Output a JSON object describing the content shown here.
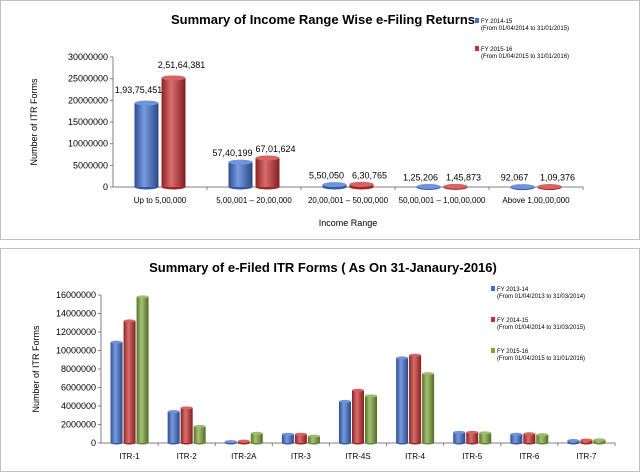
{
  "chart_data": [
    {
      "type": "bar",
      "title": "Summary of Income Range Wise e-Filing Returns",
      "xlabel": "Income Range",
      "ylabel": "Number of ITR Forms",
      "ylim": [
        0,
        30000000
      ],
      "yticks": [
        "0",
        "5000000",
        "10000000",
        "15000000",
        "20000000",
        "25000000",
        "30000000"
      ],
      "categories": [
        "Up to 5,00,000",
        "5,00,001 – 20,00,000",
        "20,00,001 – 50,00,000",
        "50,00,001 – 1,00,00,000",
        "Above 1,00,00,000"
      ],
      "series": [
        {
          "name": "FY 2014-15",
          "note": "(From 01/04/2014 to 31/01/2015)",
          "color": "#3f6fd0",
          "values": [
            19375451,
            5740199,
            550050,
            125206,
            92067
          ],
          "labels": [
            "1,93,75,451",
            "57,40,199",
            "5,50,050",
            "1,25,206",
            "92,067"
          ]
        },
        {
          "name": "FY 2015-16",
          "note": "(From 01/04/2015 to 31/01/2016)",
          "color": "#c8302f",
          "values": [
            25164381,
            6701624,
            630765,
            145873,
            109376
          ],
          "labels": [
            "2,51,64,381",
            "67,01,624",
            "6,30,765",
            "1,45,873",
            "1,09,376"
          ]
        }
      ],
      "legend": "top-right"
    },
    {
      "type": "bar",
      "title": "Summary of e-Filed ITR Forms ( As On 31-Janaury-2016)",
      "xlabel": "",
      "ylabel": "Number of ITR Forms",
      "ylim": [
        0,
        16000000
      ],
      "yticks": [
        "0",
        "2000000",
        "4000000",
        "6000000",
        "8000000",
        "10000000",
        "12000000",
        "14000000",
        "16000000"
      ],
      "categories": [
        "ITR-1",
        "ITR-2",
        "ITR-2A",
        "ITR-3",
        "ITR-4S",
        "ITR-4",
        "ITR-5",
        "ITR-6",
        "ITR-7"
      ],
      "series": [
        {
          "name": "FY 2013-14",
          "note": "(From 01/04/2013 to 31/03/2014)",
          "color": "#3f6fd0",
          "values": [
            10900000,
            3400000,
            150000,
            950000,
            4500000,
            9200000,
            1150000,
            950000,
            270000
          ]
        },
        {
          "name": "FY 2014-15",
          "note": "(From 01/04/2014 to 31/03/2015)",
          "color": "#c8302f",
          "values": [
            13200000,
            3800000,
            200000,
            950000,
            5700000,
            9500000,
            1150000,
            1000000,
            320000
          ]
        },
        {
          "name": "FY 2015-16",
          "note": "(From 01/04/2015 to 31/01/2016)",
          "color": "#7ea63a",
          "values": [
            15800000,
            1800000,
            1050000,
            750000,
            5100000,
            7500000,
            1100000,
            900000,
            350000
          ]
        }
      ],
      "legend": "right"
    }
  ]
}
